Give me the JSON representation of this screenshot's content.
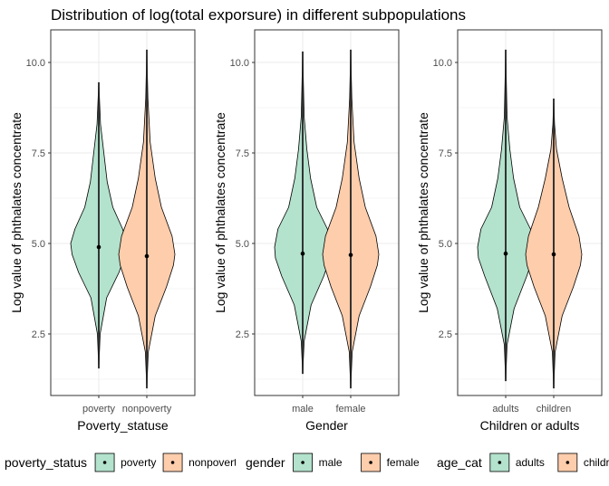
{
  "chart_data": {
    "type": "violin",
    "title": "Distribution of log(total exporsure) in different subpopulations",
    "ylim": [
      0.8,
      10.9
    ],
    "yticks": [
      2.5,
      5.0,
      7.5,
      10.0
    ],
    "ytick_labels": [
      "2.5",
      "5.0",
      "7.5",
      "10.0"
    ],
    "grid": true,
    "legend_position": "bottom",
    "colors": {
      "green": "#b3e2cd",
      "orange": "#fdcdac",
      "outline": "#000000",
      "panel_border": "#333333",
      "grid": "#ebebeb"
    },
    "panels": [
      {
        "xlabel": "Poverty_statuse",
        "ylabel": "Log value of phthalates concentrate",
        "legend_title": "poverty_status",
        "legend_labels": [
          "poverty",
          "nonpoverty"
        ],
        "categories": [
          "poverty",
          "nonpoverty"
        ],
        "groups": [
          {
            "name": "poverty",
            "color": "green",
            "min": 1.55,
            "max": 9.45,
            "median": 4.9,
            "profile": [
              [
                1.55,
                0
              ],
              [
                2.5,
                0.05
              ],
              [
                3.5,
                0.28
              ],
              [
                4.2,
                0.72
              ],
              [
                4.7,
                0.95
              ],
              [
                5.0,
                1
              ],
              [
                5.4,
                0.85
              ],
              [
                6.0,
                0.5
              ],
              [
                6.7,
                0.3
              ],
              [
                7.5,
                0.18
              ],
              [
                8.3,
                0.06
              ],
              [
                9.45,
                0
              ]
            ]
          },
          {
            "name": "nonpoverty",
            "color": "orange",
            "min": 1.0,
            "max": 10.35,
            "median": 4.65,
            "profile": [
              [
                1.0,
                0
              ],
              [
                2.0,
                0.05
              ],
              [
                3.0,
                0.3
              ],
              [
                3.8,
                0.7
              ],
              [
                4.4,
                0.95
              ],
              [
                4.7,
                1
              ],
              [
                5.2,
                0.9
              ],
              [
                6.0,
                0.52
              ],
              [
                6.8,
                0.3
              ],
              [
                7.8,
                0.12
              ],
              [
                9.0,
                0.04
              ],
              [
                10.35,
                0
              ]
            ]
          }
        ]
      },
      {
        "xlabel": "Gender",
        "ylabel": "Log value of phthalates concentrate",
        "legend_title": "gender",
        "legend_labels": [
          "male",
          "female"
        ],
        "categories": [
          "male",
          "female"
        ],
        "groups": [
          {
            "name": "male",
            "color": "green",
            "min": 1.4,
            "max": 10.3,
            "median": 4.72,
            "profile": [
              [
                1.4,
                0
              ],
              [
                2.3,
                0.05
              ],
              [
                3.3,
                0.3
              ],
              [
                4.1,
                0.75
              ],
              [
                4.6,
                0.97
              ],
              [
                4.9,
                1
              ],
              [
                5.4,
                0.88
              ],
              [
                6.0,
                0.5
              ],
              [
                6.8,
                0.28
              ],
              [
                7.6,
                0.15
              ],
              [
                8.5,
                0.05
              ],
              [
                10.3,
                0
              ]
            ]
          },
          {
            "name": "female",
            "color": "orange",
            "min": 1.0,
            "max": 10.35,
            "median": 4.68,
            "profile": [
              [
                1.0,
                0
              ],
              [
                2.0,
                0.05
              ],
              [
                3.0,
                0.3
              ],
              [
                3.8,
                0.7
              ],
              [
                4.4,
                0.95
              ],
              [
                4.7,
                1
              ],
              [
                5.2,
                0.9
              ],
              [
                6.0,
                0.52
              ],
              [
                6.8,
                0.3
              ],
              [
                7.8,
                0.12
              ],
              [
                9.0,
                0.04
              ],
              [
                10.35,
                0
              ]
            ]
          }
        ]
      },
      {
        "xlabel": "Children or adults",
        "ylabel": "Log value of phthalates concentrate",
        "legend_title": "age_cat",
        "legend_labels": [
          "adults",
          "children"
        ],
        "categories": [
          "adults",
          "children"
        ],
        "groups": [
          {
            "name": "adults",
            "color": "green",
            "min": 1.2,
            "max": 10.35,
            "median": 4.72,
            "profile": [
              [
                1.2,
                0
              ],
              [
                2.2,
                0.05
              ],
              [
                3.2,
                0.3
              ],
              [
                4.1,
                0.75
              ],
              [
                4.6,
                0.97
              ],
              [
                4.9,
                1
              ],
              [
                5.4,
                0.88
              ],
              [
                6.0,
                0.5
              ],
              [
                6.8,
                0.28
              ],
              [
                7.6,
                0.15
              ],
              [
                8.5,
                0.05
              ],
              [
                10.35,
                0
              ]
            ]
          },
          {
            "name": "children",
            "color": "orange",
            "min": 1.0,
            "max": 9.0,
            "median": 4.7,
            "profile": [
              [
                1.0,
                0
              ],
              [
                2.0,
                0.05
              ],
              [
                3.0,
                0.3
              ],
              [
                3.8,
                0.7
              ],
              [
                4.4,
                0.95
              ],
              [
                4.7,
                1
              ],
              [
                5.2,
                0.9
              ],
              [
                6.0,
                0.55
              ],
              [
                6.8,
                0.3
              ],
              [
                7.6,
                0.1
              ],
              [
                8.3,
                0.03
              ],
              [
                9.0,
                0
              ]
            ]
          }
        ]
      }
    ]
  }
}
